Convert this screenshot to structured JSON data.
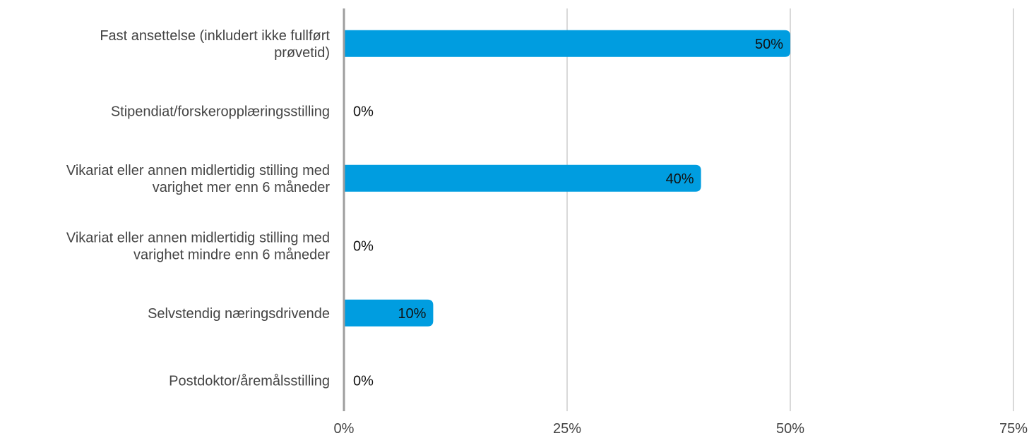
{
  "chart_data": {
    "type": "bar",
    "orientation": "horizontal",
    "categories": [
      [
        "Fast ansettelse (inkludert ikke fullført",
        "prøvetid)"
      ],
      [
        "Stipendiat/forskeropplæringsstilling"
      ],
      [
        "Vikariat eller annen midlertidig stilling med",
        "varighet mer enn 6 måneder"
      ],
      [
        "Vikariat eller annen midlertidig stilling med",
        "varighet mindre enn 6 måneder"
      ],
      [
        "Selvstendig næringsdrivende"
      ],
      [
        "Postdoktor/åremålsstilling"
      ]
    ],
    "values": [
      50,
      0,
      40,
      0,
      10,
      0
    ],
    "data_labels": [
      "50%",
      "0%",
      "40%",
      "0%",
      "10%",
      "0%"
    ],
    "xlim": [
      0,
      75
    ],
    "xticks": [
      0,
      25,
      50,
      75
    ],
    "xtick_labels": [
      "0%",
      "25%",
      "50%",
      "75%"
    ],
    "grid": true,
    "bar_color": "#009de0",
    "grid_color": "#b3b3b3",
    "axis_color": "#9e9e9e",
    "legend": "none"
  }
}
